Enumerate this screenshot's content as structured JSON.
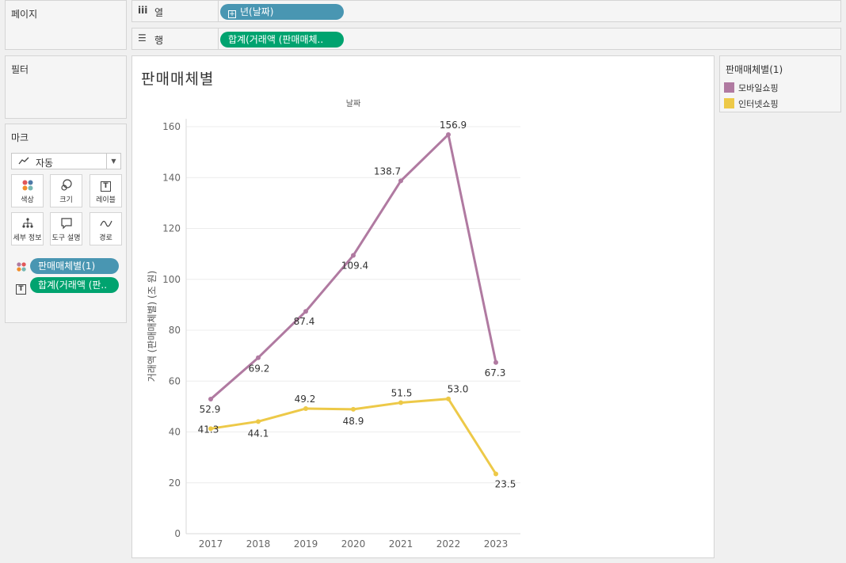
{
  "sidebar": {
    "pages_title": "페이지",
    "filters_title": "필터",
    "marks_title": "마크",
    "mark_type": "자동",
    "buttons": [
      {
        "label": "색상",
        "icon": "color-dots-icon"
      },
      {
        "label": "크기",
        "icon": "size-circles-icon"
      },
      {
        "label": "레이블",
        "icon": "label-text-icon"
      },
      {
        "label": "세부 정보",
        "icon": "detail-tree-icon"
      },
      {
        "label": "도구 설명",
        "icon": "tooltip-bubble-icon"
      },
      {
        "label": "경로",
        "icon": "path-line-icon"
      }
    ],
    "mark_fields": [
      {
        "label": "판매매체별(1)",
        "icon": "color-dots-icon"
      },
      {
        "label": "합계(거래액 (판..",
        "icon": "label-text-icon"
      }
    ]
  },
  "shelves": {
    "columns": {
      "icon": "iii",
      "label": "열",
      "pill": "년(날짜)"
    },
    "rows": {
      "icon": "☰",
      "label": "행",
      "pill": "합계(거래액 (판매매체.."
    }
  },
  "chart": {
    "title": "판매매체별"
  },
  "legend": {
    "title": "판매매체별(1)",
    "items": [
      {
        "label": "모바일쇼핑",
        "color": "#b07aa1"
      },
      {
        "label": "인터넷쇼핑",
        "color": "#edc948"
      }
    ]
  },
  "chart_data": {
    "type": "line",
    "title": "판매매체별",
    "xlabel": "날짜",
    "ylabel": "거래액 (판매매체별) (조 원)",
    "categories": [
      "2017",
      "2018",
      "2019",
      "2020",
      "2021",
      "2022",
      "2023"
    ],
    "series": [
      {
        "name": "모바일쇼핑",
        "color": "#b07aa1",
        "values": [
          52.9,
          69.2,
          87.4,
          109.4,
          138.7,
          156.9,
          67.3
        ],
        "labels": [
          "52.9",
          "69.2",
          "87.4",
          "109.4",
          "138.7",
          "156.9",
          "67.3"
        ]
      },
      {
        "name": "인터넷쇼핑",
        "color": "#edc948",
        "values": [
          41.3,
          44.1,
          49.2,
          48.9,
          51.5,
          53.0,
          23.5
        ],
        "labels": [
          "41.3",
          "44.1",
          "49.2",
          "48.9",
          "51.5",
          "53.0",
          "23.5"
        ]
      }
    ],
    "yticks": [
      "0",
      "20",
      "40",
      "60",
      "80",
      "100",
      "120",
      "140",
      "160"
    ],
    "ylim": [
      0,
      160
    ],
    "grid": true
  }
}
